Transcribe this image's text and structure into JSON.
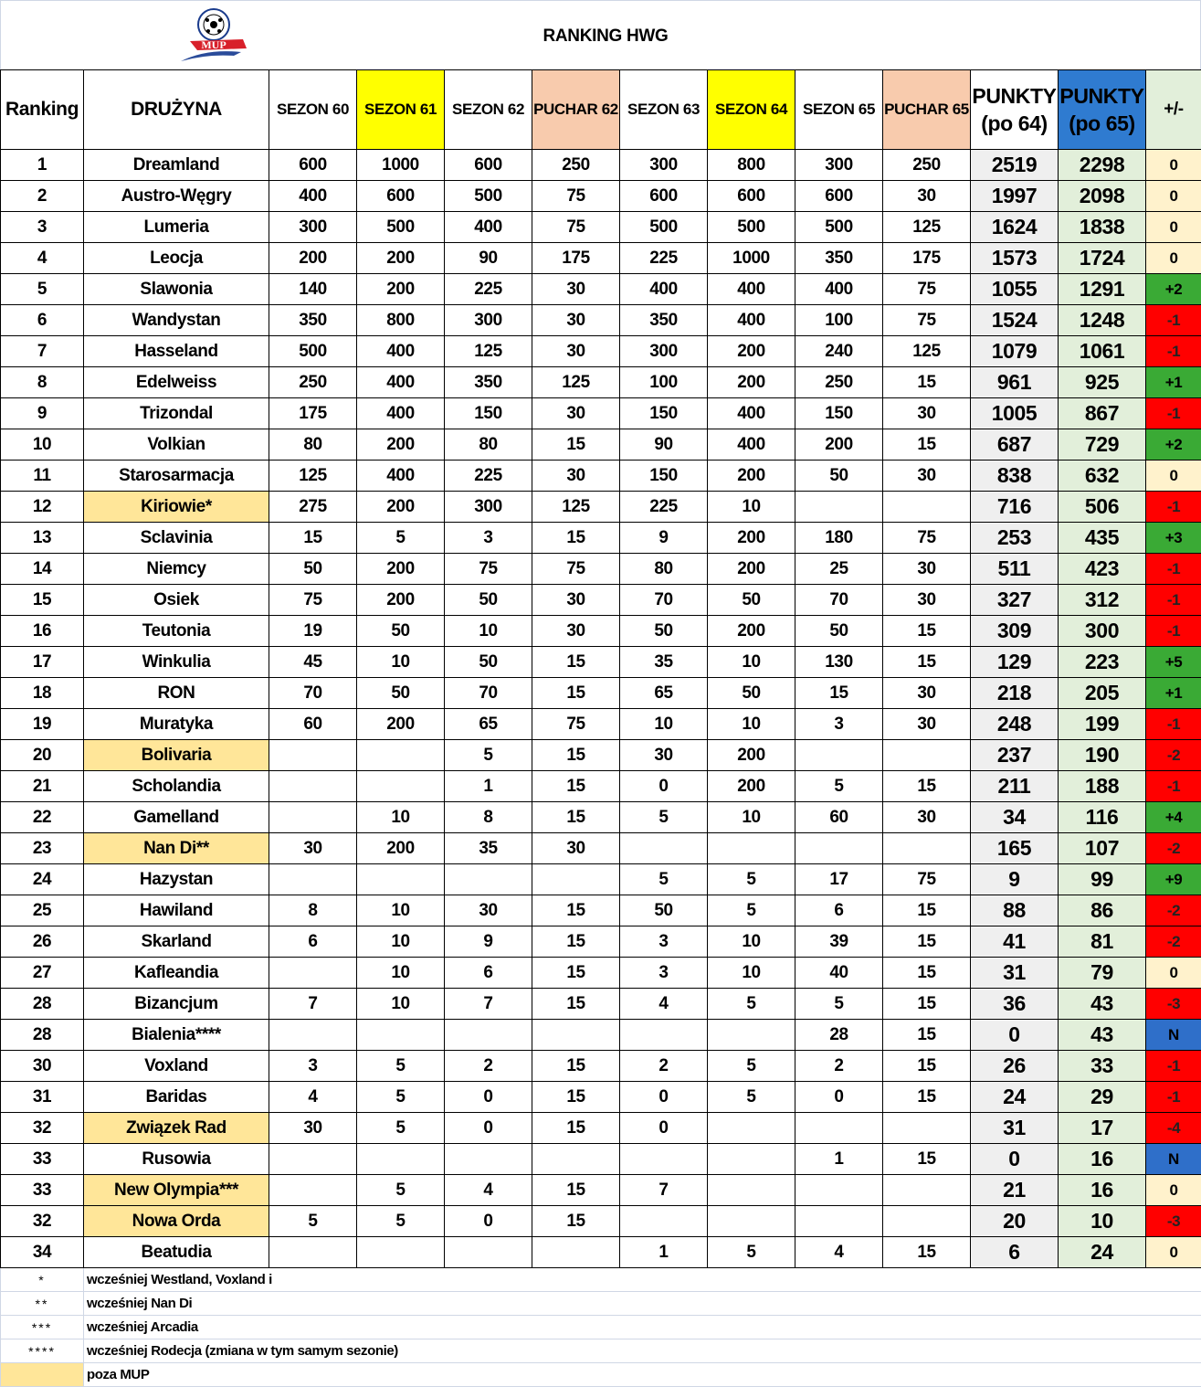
{
  "header": {
    "title": "RANKING HWG",
    "logo_text": "MUP"
  },
  "columns": [
    "Ranking",
    "DRUŻYNA",
    "SEZON 60",
    "SEZON 61",
    "SEZON 62",
    "PUCHAR 62",
    "SEZON 63",
    "SEZON 64",
    "SEZON 65",
    "PUCHAR 65",
    "PUNKTY\n(po 64)",
    "PUNKTY\n(po 65)",
    "+/-"
  ],
  "column_colors": [
    "#ffffff",
    "#ffffff",
    "#ffffff",
    "#ffff00",
    "#ffffff",
    "#f8cbad",
    "#ffffff",
    "#ffff00",
    "#ffffff",
    "#f8cbad",
    "#ffffff",
    "#2f7bd0",
    "#e2efda"
  ],
  "delta_colors": {
    "zero": "#fff2cc",
    "up": "#3aaa35",
    "down": "#ff0000",
    "new": "#2f6fc9"
  },
  "rows": [
    [
      "1",
      "Dreamland",
      "600",
      "1000",
      "600",
      "250",
      "300",
      "800",
      "300",
      "250",
      "2519",
      "2298",
      "0"
    ],
    [
      "2",
      "Austro-Węgry",
      "400",
      "600",
      "500",
      "75",
      "600",
      "600",
      "600",
      "30",
      "1997",
      "2098",
      "0"
    ],
    [
      "3",
      "Lumeria",
      "300",
      "500",
      "400",
      "75",
      "500",
      "500",
      "500",
      "125",
      "1624",
      "1838",
      "0"
    ],
    [
      "4",
      "Leocja",
      "200",
      "200",
      "90",
      "175",
      "225",
      "1000",
      "350",
      "175",
      "1573",
      "1724",
      "0"
    ],
    [
      "5",
      "Slawonia",
      "140",
      "200",
      "225",
      "30",
      "400",
      "400",
      "400",
      "75",
      "1055",
      "1291",
      "+2"
    ],
    [
      "6",
      "Wandystan",
      "350",
      "800",
      "300",
      "30",
      "350",
      "400",
      "100",
      "75",
      "1524",
      "1248",
      "-1"
    ],
    [
      "7",
      "Hasseland",
      "500",
      "400",
      "125",
      "30",
      "300",
      "200",
      "240",
      "125",
      "1079",
      "1061",
      "-1"
    ],
    [
      "8",
      "Edelweiss",
      "250",
      "400",
      "350",
      "125",
      "100",
      "200",
      "250",
      "15",
      "961",
      "925",
      "+1"
    ],
    [
      "9",
      "Trizondal",
      "175",
      "400",
      "150",
      "30",
      "150",
      "400",
      "150",
      "30",
      "1005",
      "867",
      "-1"
    ],
    [
      "10",
      "Volkian",
      "80",
      "200",
      "80",
      "15",
      "90",
      "400",
      "200",
      "15",
      "687",
      "729",
      "+2"
    ],
    [
      "11",
      "Starosarmacja",
      "125",
      "400",
      "225",
      "30",
      "150",
      "200",
      "50",
      "30",
      "838",
      "632",
      "0"
    ],
    [
      "12",
      "Kiriowie*",
      "275",
      "200",
      "300",
      "125",
      "225",
      "10",
      "",
      "",
      "716",
      "506",
      "-1"
    ],
    [
      "13",
      "Sclavinia",
      "15",
      "5",
      "3",
      "15",
      "9",
      "200",
      "180",
      "75",
      "253",
      "435",
      "+3"
    ],
    [
      "14",
      "Niemcy",
      "50",
      "200",
      "75",
      "75",
      "80",
      "200",
      "25",
      "30",
      "511",
      "423",
      "-1"
    ],
    [
      "15",
      "Osiek",
      "75",
      "200",
      "50",
      "30",
      "70",
      "50",
      "70",
      "30",
      "327",
      "312",
      "-1"
    ],
    [
      "16",
      "Teutonia",
      "19",
      "50",
      "10",
      "30",
      "50",
      "200",
      "50",
      "15",
      "309",
      "300",
      "-1"
    ],
    [
      "17",
      "Winkulia",
      "45",
      "10",
      "50",
      "15",
      "35",
      "10",
      "130",
      "15",
      "129",
      "223",
      "+5"
    ],
    [
      "18",
      "RON",
      "70",
      "50",
      "70",
      "15",
      "65",
      "50",
      "15",
      "30",
      "218",
      "205",
      "+1"
    ],
    [
      "19",
      "Muratyka",
      "60",
      "200",
      "65",
      "75",
      "10",
      "10",
      "3",
      "30",
      "248",
      "199",
      "-1"
    ],
    [
      "20",
      "Bolivaria",
      "",
      "",
      "5",
      "15",
      "30",
      "200",
      "",
      "",
      "237",
      "190",
      "-2"
    ],
    [
      "21",
      "Scholandia",
      "",
      "",
      "1",
      "15",
      "0",
      "200",
      "5",
      "15",
      "211",
      "188",
      "-1"
    ],
    [
      "22",
      "Gamelland",
      "",
      "10",
      "8",
      "15",
      "5",
      "10",
      "60",
      "30",
      "34",
      "116",
      "+4"
    ],
    [
      "23",
      "Nan Di**",
      "30",
      "200",
      "35",
      "30",
      "",
      "",
      "",
      "",
      "165",
      "107",
      "-2"
    ],
    [
      "24",
      "Hazystan",
      "",
      "",
      "",
      "",
      "5",
      "5",
      "17",
      "75",
      "9",
      "99",
      "+9"
    ],
    [
      "25",
      "Hawiland",
      "8",
      "10",
      "30",
      "15",
      "50",
      "5",
      "6",
      "15",
      "88",
      "86",
      "-2"
    ],
    [
      "26",
      "Skarland",
      "6",
      "10",
      "9",
      "15",
      "3",
      "10",
      "39",
      "15",
      "41",
      "81",
      "-2"
    ],
    [
      "27",
      "Kafleandia",
      "",
      "10",
      "6",
      "15",
      "3",
      "10",
      "40",
      "15",
      "31",
      "79",
      "0"
    ],
    [
      "28",
      "Bizancjum",
      "7",
      "10",
      "7",
      "15",
      "4",
      "5",
      "5",
      "15",
      "36",
      "43",
      "-3"
    ],
    [
      "28",
      "Bialenia****",
      "",
      "",
      "",
      "",
      "",
      "",
      "28",
      "15",
      "0",
      "43",
      "N"
    ],
    [
      "30",
      "Voxland",
      "3",
      "5",
      "2",
      "15",
      "2",
      "5",
      "2",
      "15",
      "26",
      "33",
      "-1"
    ],
    [
      "31",
      "Baridas",
      "4",
      "5",
      "0",
      "15",
      "0",
      "5",
      "0",
      "15",
      "24",
      "29",
      "-1"
    ],
    [
      "32",
      "Związek Rad",
      "30",
      "5",
      "0",
      "15",
      "0",
      "",
      "",
      "",
      "31",
      "17",
      "-4"
    ],
    [
      "33",
      "Rusowia",
      "",
      "",
      "",
      "",
      "",
      "",
      "1",
      "15",
      "0",
      "16",
      "N"
    ],
    [
      "33",
      "New Olympia***",
      "",
      "5",
      "4",
      "15",
      "7",
      "",
      "",
      "",
      "21",
      "16",
      "0"
    ],
    [
      "32",
      "Nowa Orda",
      "5",
      "5",
      "0",
      "15",
      "",
      "",
      "",
      "",
      "20",
      "10",
      "-3"
    ],
    [
      "34",
      "Beatudia",
      "",
      "",
      "",
      "",
      "1",
      "5",
      "4",
      "15",
      "6",
      "24",
      "0"
    ]
  ],
  "outside_mup_teams": [
    "Kiriowie*",
    "Bolivaria",
    "Nan Di**",
    "Związek Rad",
    "New Olympia***",
    "Nowa Orda"
  ],
  "outside_mup_color": "#ffe699",
  "footnotes": [
    {
      "symbol": "*",
      "text": "wcześniej Westland, Voxland i"
    },
    {
      "symbol": "**",
      "text": "wcześniej Nan Di"
    },
    {
      "symbol": "***",
      "text": "wcześniej Arcadia"
    },
    {
      "symbol": "****",
      "text": "wcześniej Rodecja (zmiana w tym samym sezonie)"
    },
    {
      "symbol": "",
      "text": "poza MUP"
    }
  ]
}
